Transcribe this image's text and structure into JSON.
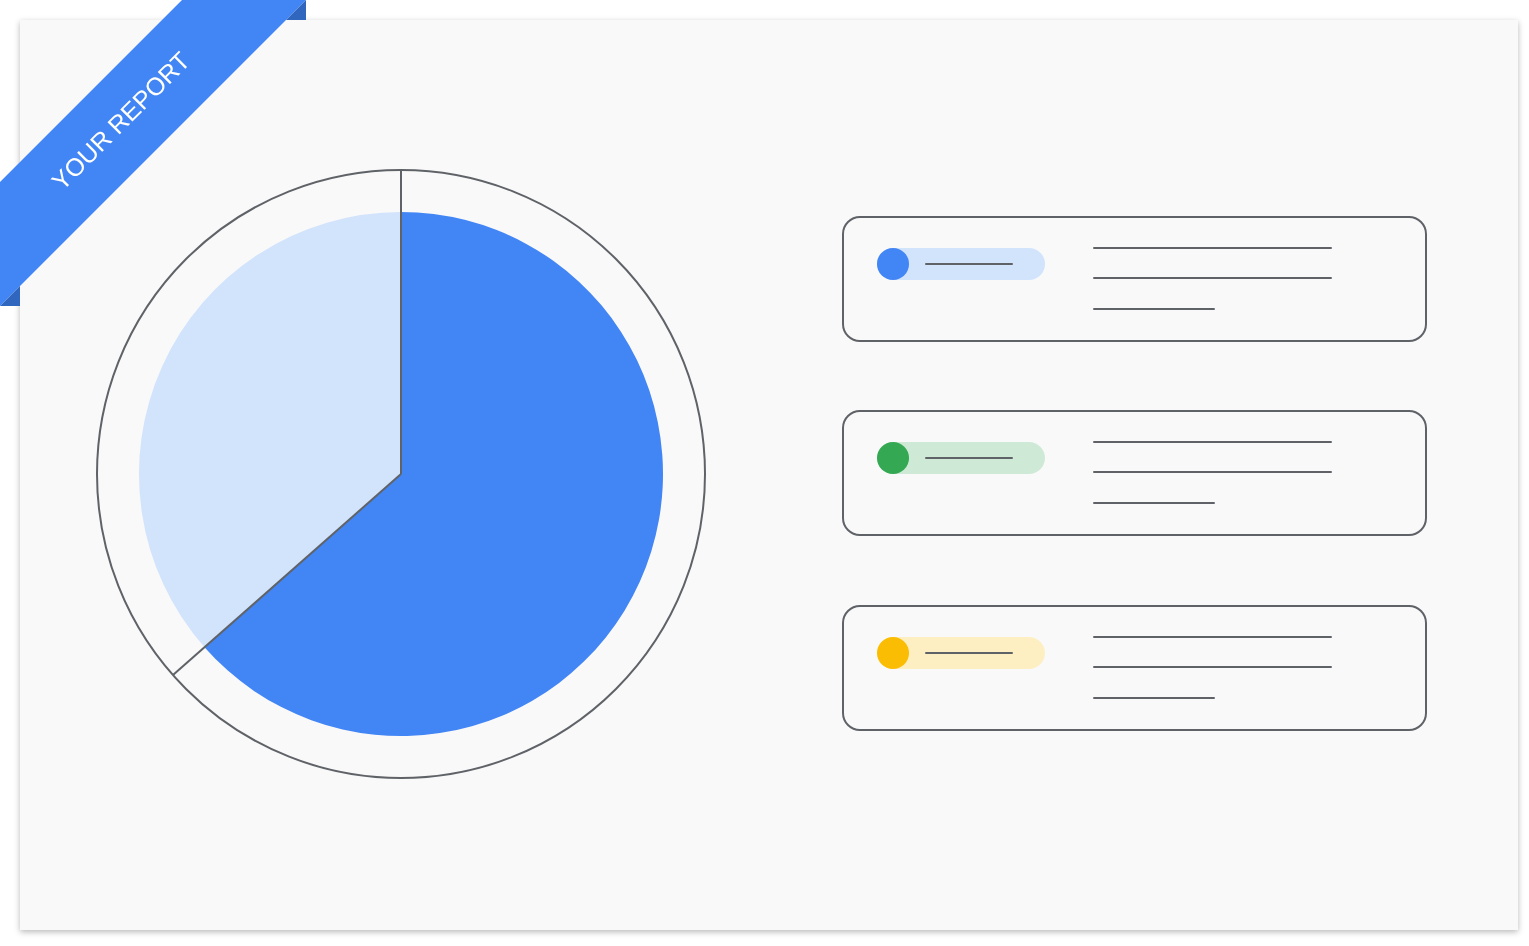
{
  "chart_data": {
    "type": "pie",
    "title": "YOUR REPORT",
    "categories": [
      null,
      null
    ],
    "values": [
      63.5,
      36.5
    ],
    "colors": [
      "#4285f4",
      "#d2e3fc"
    ]
  }
}
